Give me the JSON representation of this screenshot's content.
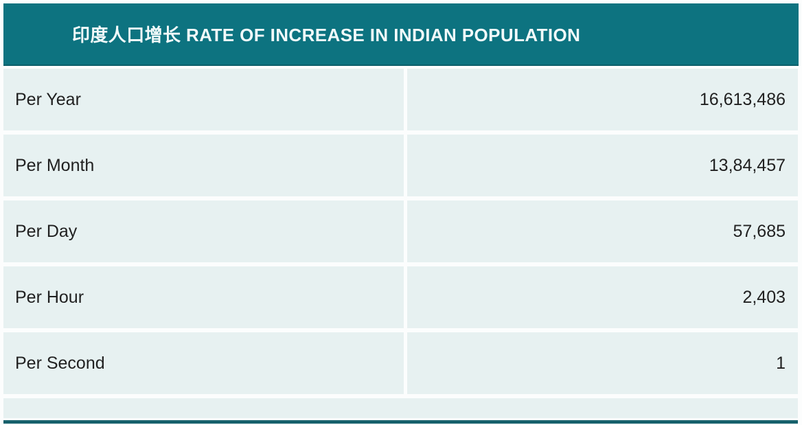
{
  "header": {
    "title": "印度人口增长 RATE OF INCREASE IN INDIAN POPULATION"
  },
  "table": {
    "rows": [
      {
        "label": "Per Year",
        "value": "16,613,486"
      },
      {
        "label": "Per Month",
        "value": "13,84,457"
      },
      {
        "label": "Per Day",
        "value": "57,685"
      },
      {
        "label": "Per Hour",
        "value": "2,403"
      },
      {
        "label": "Per Second",
        "value": "1"
      }
    ]
  },
  "chart_data": {
    "type": "table",
    "title": "印度人口增长 RATE OF INCREASE IN INDIAN POPULATION",
    "categories": [
      "Per Year",
      "Per Month",
      "Per Day",
      "Per Hour",
      "Per Second"
    ],
    "values": [
      16613486,
      1384457,
      57685,
      2403,
      1
    ],
    "display_values": [
      "16,613,486",
      "13,84,457",
      "57,685",
      "2,403",
      "1"
    ],
    "layout": "two-column table, labels left-aligned, values right-aligned, no column headers"
  },
  "colors": {
    "header_bg": "#0d7380",
    "header_border": "#0b5f6a",
    "header_text": "#f2fafa",
    "row_bg": "#e7f1f1",
    "row_text": "#212121",
    "bottom_bar": "#17616c",
    "page_bg": "#fcfdfd"
  }
}
